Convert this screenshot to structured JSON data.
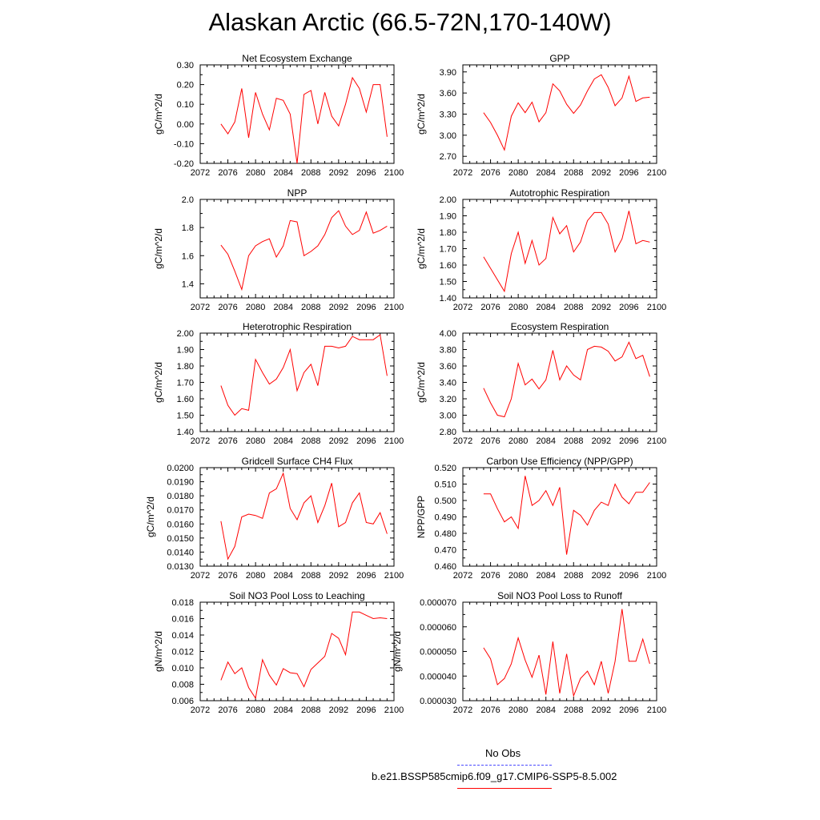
{
  "title": "Alaskan Arctic (66.5-72N,170-140W)",
  "series_color": "#ff0000",
  "legend": {
    "entries": [
      {
        "label": "No Obs",
        "color": "#4a4aff",
        "style": "dashed"
      },
      {
        "label": "b.e21.BSSP585cmip6.f09_g17.CMIP6-SSP5-8.5.002",
        "color": "#ff0000",
        "style": "solid"
      }
    ]
  },
  "chart_data": [
    {
      "type": "line",
      "title": "Net Ecosystem Exchange",
      "ylabel": "gC/m^2/d",
      "xlabel": "",
      "xlim": [
        2072,
        2100
      ],
      "xticks": [
        2072,
        2076,
        2080,
        2084,
        2088,
        2092,
        2096,
        2100
      ],
      "ylim": [
        -0.2,
        0.3
      ],
      "yticks": [
        "-0.20",
        "-0.10",
        "0.00",
        "0.10",
        "0.20",
        "0.30"
      ],
      "x": [
        2075,
        2076,
        2077,
        2078,
        2079,
        2080,
        2081,
        2082,
        2083,
        2084,
        2085,
        2086,
        2087,
        2088,
        2089,
        2090,
        2091,
        2092,
        2093,
        2094,
        2095,
        2096,
        2097,
        2098,
        2099
      ],
      "y": [
        0.0,
        -0.05,
        0.01,
        0.18,
        -0.07,
        0.16,
        0.05,
        -0.03,
        0.13,
        0.12,
        0.05,
        -0.2,
        0.15,
        0.17,
        0.0,
        0.16,
        0.04,
        -0.01,
        0.1,
        0.235,
        0.18,
        0.06,
        0.2,
        0.2,
        -0.065
      ]
    },
    {
      "type": "line",
      "title": "GPP",
      "ylabel": "gC/m^2/d",
      "xlabel": "",
      "xlim": [
        2072,
        2100
      ],
      "xticks": [
        2072,
        2076,
        2080,
        2084,
        2088,
        2092,
        2096,
        2100
      ],
      "ylim": [
        2.6,
        4.0
      ],
      "yticks": [
        "2.70",
        "3.00",
        "3.30",
        "3.60",
        "3.90"
      ],
      "x": [
        2075,
        2076,
        2077,
        2078,
        2079,
        2080,
        2081,
        2082,
        2083,
        2084,
        2085,
        2086,
        2087,
        2088,
        2089,
        2090,
        2091,
        2092,
        2093,
        2094,
        2095,
        2096,
        2097,
        2098,
        2099
      ],
      "y": [
        3.32,
        3.18,
        3.0,
        2.79,
        3.27,
        3.46,
        3.32,
        3.47,
        3.19,
        3.32,
        3.73,
        3.63,
        3.44,
        3.31,
        3.43,
        3.63,
        3.8,
        3.86,
        3.68,
        3.42,
        3.53,
        3.84,
        3.48,
        3.53,
        3.54
      ]
    },
    {
      "type": "line",
      "title": "NPP",
      "ylabel": "gC/m^2/d",
      "xlabel": "",
      "xlim": [
        2072,
        2100
      ],
      "xticks": [
        2072,
        2076,
        2080,
        2084,
        2088,
        2092,
        2096,
        2100
      ],
      "ylim": [
        1.3,
        2.0
      ],
      "yticks": [
        "1.4",
        "1.6",
        "1.8",
        "2.0"
      ],
      "x": [
        2075,
        2076,
        2077,
        2078,
        2079,
        2080,
        2081,
        2082,
        2083,
        2084,
        2085,
        2086,
        2087,
        2088,
        2089,
        2090,
        2091,
        2092,
        2093,
        2094,
        2095,
        2096,
        2097,
        2098,
        2099
      ],
      "y": [
        1.675,
        1.61,
        1.49,
        1.36,
        1.6,
        1.67,
        1.7,
        1.72,
        1.59,
        1.67,
        1.85,
        1.84,
        1.6,
        1.63,
        1.67,
        1.75,
        1.87,
        1.92,
        1.81,
        1.75,
        1.78,
        1.91,
        1.76,
        1.78,
        1.81
      ]
    },
    {
      "type": "line",
      "title": "Autotrophic Respiration",
      "ylabel": "gC/m^2/d",
      "xlabel": "",
      "xlim": [
        2072,
        2100
      ],
      "xticks": [
        2072,
        2076,
        2080,
        2084,
        2088,
        2092,
        2096,
        2100
      ],
      "ylim": [
        1.4,
        2.0
      ],
      "yticks": [
        "1.40",
        "1.50",
        "1.60",
        "1.70",
        "1.80",
        "1.90",
        "2.00"
      ],
      "x": [
        2075,
        2076,
        2077,
        2078,
        2079,
        2080,
        2081,
        2082,
        2083,
        2084,
        2085,
        2086,
        2087,
        2088,
        2089,
        2090,
        2091,
        2092,
        2093,
        2094,
        2095,
        2096,
        2097,
        2098,
        2099
      ],
      "y": [
        1.65,
        1.58,
        1.51,
        1.44,
        1.67,
        1.8,
        1.61,
        1.75,
        1.6,
        1.64,
        1.89,
        1.79,
        1.84,
        1.68,
        1.74,
        1.87,
        1.92,
        1.92,
        1.85,
        1.68,
        1.76,
        1.93,
        1.73,
        1.75,
        1.74
      ]
    },
    {
      "type": "line",
      "title": "Heterotrophic Respiration",
      "ylabel": "gC/m^2/d",
      "xlabel": "",
      "xlim": [
        2072,
        2100
      ],
      "xticks": [
        2072,
        2076,
        2080,
        2084,
        2088,
        2092,
        2096,
        2100
      ],
      "ylim": [
        1.4,
        2.0
      ],
      "yticks": [
        "1.40",
        "1.50",
        "1.60",
        "1.70",
        "1.80",
        "1.90",
        "2.00"
      ],
      "x": [
        2075,
        2076,
        2077,
        2078,
        2079,
        2080,
        2081,
        2082,
        2083,
        2084,
        2085,
        2086,
        2087,
        2088,
        2089,
        2090,
        2091,
        2092,
        2093,
        2094,
        2095,
        2096,
        2097,
        2098,
        2099
      ],
      "y": [
        1.68,
        1.56,
        1.5,
        1.54,
        1.53,
        1.84,
        1.76,
        1.69,
        1.72,
        1.79,
        1.9,
        1.65,
        1.76,
        1.81,
        1.68,
        1.92,
        1.92,
        1.91,
        1.92,
        1.98,
        1.96,
        1.96,
        1.96,
        1.99,
        1.74
      ]
    },
    {
      "type": "line",
      "title": "Ecosystem Respiration",
      "ylabel": "gC/m^2/d",
      "xlabel": "",
      "xlim": [
        2072,
        2100
      ],
      "xticks": [
        2072,
        2076,
        2080,
        2084,
        2088,
        2092,
        2096,
        2100
      ],
      "ylim": [
        2.8,
        4.0
      ],
      "yticks": [
        "2.80",
        "3.00",
        "3.20",
        "3.40",
        "3.60",
        "3.80",
        "4.00"
      ],
      "x": [
        2075,
        2076,
        2077,
        2078,
        2079,
        2080,
        2081,
        2082,
        2083,
        2084,
        2085,
        2086,
        2087,
        2088,
        2089,
        2090,
        2091,
        2092,
        2093,
        2094,
        2095,
        2096,
        2097,
        2098,
        2099
      ],
      "y": [
        3.33,
        3.15,
        3.0,
        2.98,
        3.2,
        3.63,
        3.37,
        3.44,
        3.32,
        3.43,
        3.79,
        3.43,
        3.6,
        3.49,
        3.43,
        3.8,
        3.84,
        3.83,
        3.78,
        3.66,
        3.71,
        3.89,
        3.69,
        3.73,
        3.47
      ]
    },
    {
      "type": "line",
      "title": "Gridcell Surface CH4 Flux",
      "ylabel": "gC/m^2/d",
      "xlabel": "",
      "xlim": [
        2072,
        2100
      ],
      "xticks": [
        2072,
        2076,
        2080,
        2084,
        2088,
        2092,
        2096,
        2100
      ],
      "ylim": [
        0.013,
        0.02
      ],
      "yticks": [
        "0.0130",
        "0.0140",
        "0.0150",
        "0.0160",
        "0.0170",
        "0.0180",
        "0.0190",
        "0.0200"
      ],
      "x": [
        2075,
        2076,
        2077,
        2078,
        2079,
        2080,
        2081,
        2082,
        2083,
        2084,
        2085,
        2086,
        2087,
        2088,
        2089,
        2090,
        2091,
        2092,
        2093,
        2094,
        2095,
        2096,
        2097,
        2098,
        2099
      ],
      "y": [
        0.0162,
        0.0135,
        0.0144,
        0.0165,
        0.0167,
        0.0166,
        0.0164,
        0.0182,
        0.0185,
        0.0196,
        0.0171,
        0.0163,
        0.0175,
        0.018,
        0.0161,
        0.0173,
        0.0189,
        0.0158,
        0.0161,
        0.0175,
        0.0182,
        0.0161,
        0.016,
        0.0168,
        0.0153
      ]
    },
    {
      "type": "line",
      "title": "Carbon Use Efficiency (NPP/GPP)",
      "ylabel": "NPP/GPP",
      "xlabel": "",
      "xlim": [
        2072,
        2100
      ],
      "xticks": [
        2072,
        2076,
        2080,
        2084,
        2088,
        2092,
        2096,
        2100
      ],
      "ylim": [
        0.46,
        0.52
      ],
      "yticks": [
        "0.460",
        "0.470",
        "0.480",
        "0.490",
        "0.500",
        "0.510",
        "0.520"
      ],
      "x": [
        2075,
        2076,
        2077,
        2078,
        2079,
        2080,
        2081,
        2082,
        2083,
        2084,
        2085,
        2086,
        2087,
        2088,
        2089,
        2090,
        2091,
        2092,
        2093,
        2094,
        2095,
        2096,
        2097,
        2098,
        2099
      ],
      "y": [
        0.504,
        0.504,
        0.495,
        0.487,
        0.49,
        0.483,
        0.515,
        0.497,
        0.5,
        0.506,
        0.497,
        0.508,
        0.467,
        0.494,
        0.491,
        0.485,
        0.494,
        0.499,
        0.497,
        0.51,
        0.502,
        0.498,
        0.505,
        0.505,
        0.511
      ]
    },
    {
      "type": "line",
      "title": "Soil NO3 Pool Loss to Leaching",
      "ylabel": "gN/m^2/d",
      "xlabel": "",
      "xlim": [
        2072,
        2100
      ],
      "xticks": [
        2072,
        2076,
        2080,
        2084,
        2088,
        2092,
        2096,
        2100
      ],
      "ylim": [
        0.006,
        0.018
      ],
      "yticks": [
        "0.006",
        "0.008",
        "0.010",
        "0.012",
        "0.014",
        "0.016",
        "0.018"
      ],
      "x": [
        2075,
        2076,
        2077,
        2078,
        2079,
        2080,
        2081,
        2082,
        2083,
        2084,
        2085,
        2086,
        2087,
        2088,
        2089,
        2090,
        2091,
        2092,
        2093,
        2094,
        2095,
        2096,
        2097,
        2098,
        2099
      ],
      "y": [
        0.0085,
        0.0107,
        0.0093,
        0.01,
        0.0076,
        0.0063,
        0.011,
        0.0091,
        0.0079,
        0.0099,
        0.0094,
        0.0093,
        0.0077,
        0.0098,
        0.0106,
        0.0114,
        0.0142,
        0.0136,
        0.0116,
        0.0168,
        0.0168,
        0.0164,
        0.016,
        0.0161,
        0.016
      ]
    },
    {
      "type": "line",
      "title": "Soil NO3 Pool Loss to Runoff",
      "ylabel": "gN/m^2/d",
      "xlabel": "",
      "xlim": [
        2072,
        2100
      ],
      "xticks": [
        2072,
        2076,
        2080,
        2084,
        2088,
        2092,
        2096,
        2100
      ],
      "ylim": [
        3e-05,
        7e-05
      ],
      "yticks": [
        "0.000030",
        "0.000040",
        "0.000050",
        "0.000060",
        "0.000070"
      ],
      "x": [
        2075,
        2076,
        2077,
        2078,
        2079,
        2080,
        2081,
        2082,
        2083,
        2084,
        2085,
        2086,
        2087,
        2088,
        2089,
        2090,
        2091,
        2092,
        2093,
        2094,
        2095,
        2096,
        2097,
        2098,
        2099
      ],
      "y": [
        5.15e-05,
        4.7e-05,
        3.65e-05,
        3.9e-05,
        4.5e-05,
        5.55e-05,
        4.65e-05,
        3.95e-05,
        4.85e-05,
        3.25e-05,
        5.4e-05,
        3.3e-05,
        4.9e-05,
        3.2e-05,
        3.9e-05,
        4.2e-05,
        3.65e-05,
        4.6e-05,
        3.3e-05,
        4.6e-05,
        6.72e-05,
        4.6e-05,
        4.6e-05,
        5.5e-05,
        4.5e-05
      ]
    }
  ]
}
